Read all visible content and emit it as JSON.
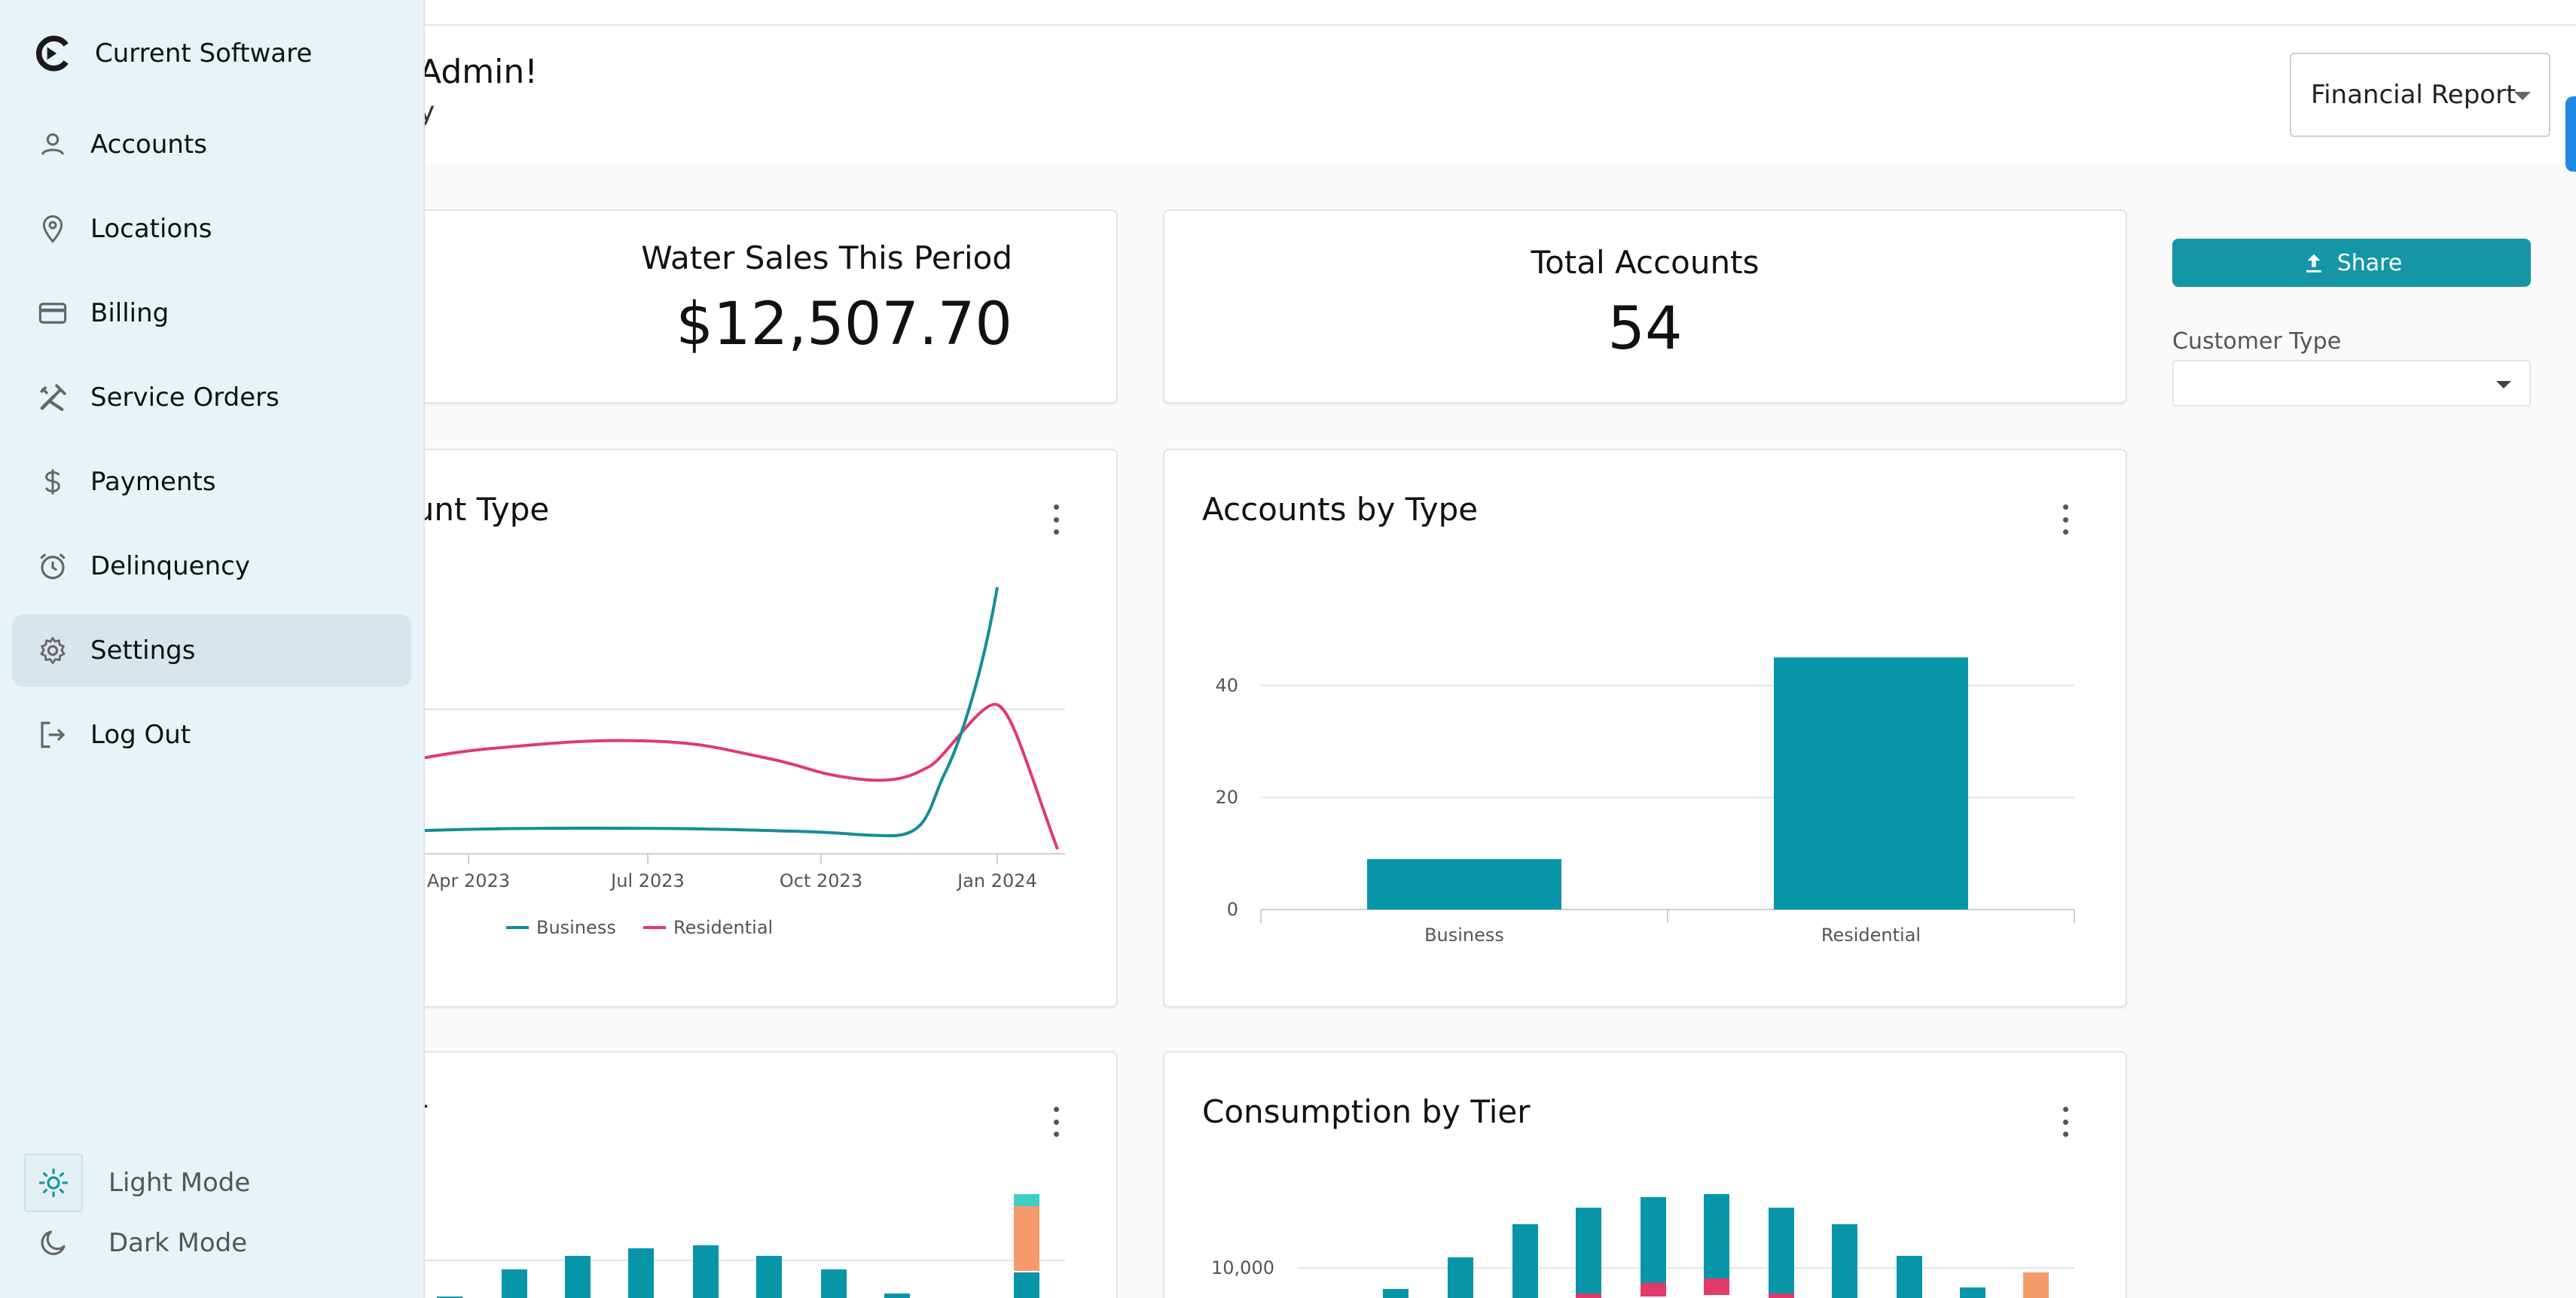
{
  "sidebar": {
    "brand": "Current Software",
    "items": [
      {
        "label": "Accounts",
        "icon": "person-icon"
      },
      {
        "label": "Locations",
        "icon": "location-pin-icon"
      },
      {
        "label": "Billing",
        "icon": "credit-card-icon"
      },
      {
        "label": "Service Orders",
        "icon": "tools-icon"
      },
      {
        "label": "Payments",
        "icon": "dollar-icon"
      },
      {
        "label": "Delinquency",
        "icon": "alarm-clock-icon"
      },
      {
        "label": "Settings",
        "icon": "gear-icon",
        "active": true
      },
      {
        "label": "Log Out",
        "icon": "logout-icon"
      }
    ],
    "modes": [
      {
        "label": "Light Mode",
        "icon": "sun-icon",
        "active": true
      },
      {
        "label": "Dark Mode",
        "icon": "moon-icon"
      }
    ]
  },
  "header": {
    "greeting": "Admin!",
    "subtitle": "y",
    "report_select": "Financial Report"
  },
  "stats": {
    "water_sales": {
      "title": "Water Sales This Period",
      "value": "$12,507.70"
    },
    "total_accounts": {
      "title": "Total Accounts",
      "value": "54"
    }
  },
  "controls": {
    "share_label": "Share",
    "customer_type_label": "Customer Type",
    "customer_type_value": ""
  },
  "colors": {
    "teal": "#0796a8",
    "pink": "#e23a6a",
    "orange": "#f59a6b",
    "aqua": "#3ecfc4"
  },
  "chart_data": [
    {
      "type": "line",
      "title": "ount Type",
      "x": [
        "Apr 2023",
        "Jul 2023",
        "Oct 2023",
        "Jan 2024"
      ],
      "series": [
        {
          "name": "Business",
          "color": "#138d99"
        },
        {
          "name": "Residential",
          "color": "#e23a6a"
        }
      ],
      "legend": "bottom"
    },
    {
      "type": "bar",
      "title": "Accounts by Type",
      "categories": [
        "Business",
        "Residential"
      ],
      "values": [
        9,
        45
      ],
      "yticks": [
        "0",
        "20",
        "40"
      ],
      "ylim": [
        0,
        50
      ],
      "grid": true
    },
    {
      "type": "bar",
      "title": "er",
      "stacked": true
    },
    {
      "type": "bar",
      "title": "Consumption by Tier",
      "stacked": true,
      "yticks": [
        "10,000"
      ]
    }
  ]
}
